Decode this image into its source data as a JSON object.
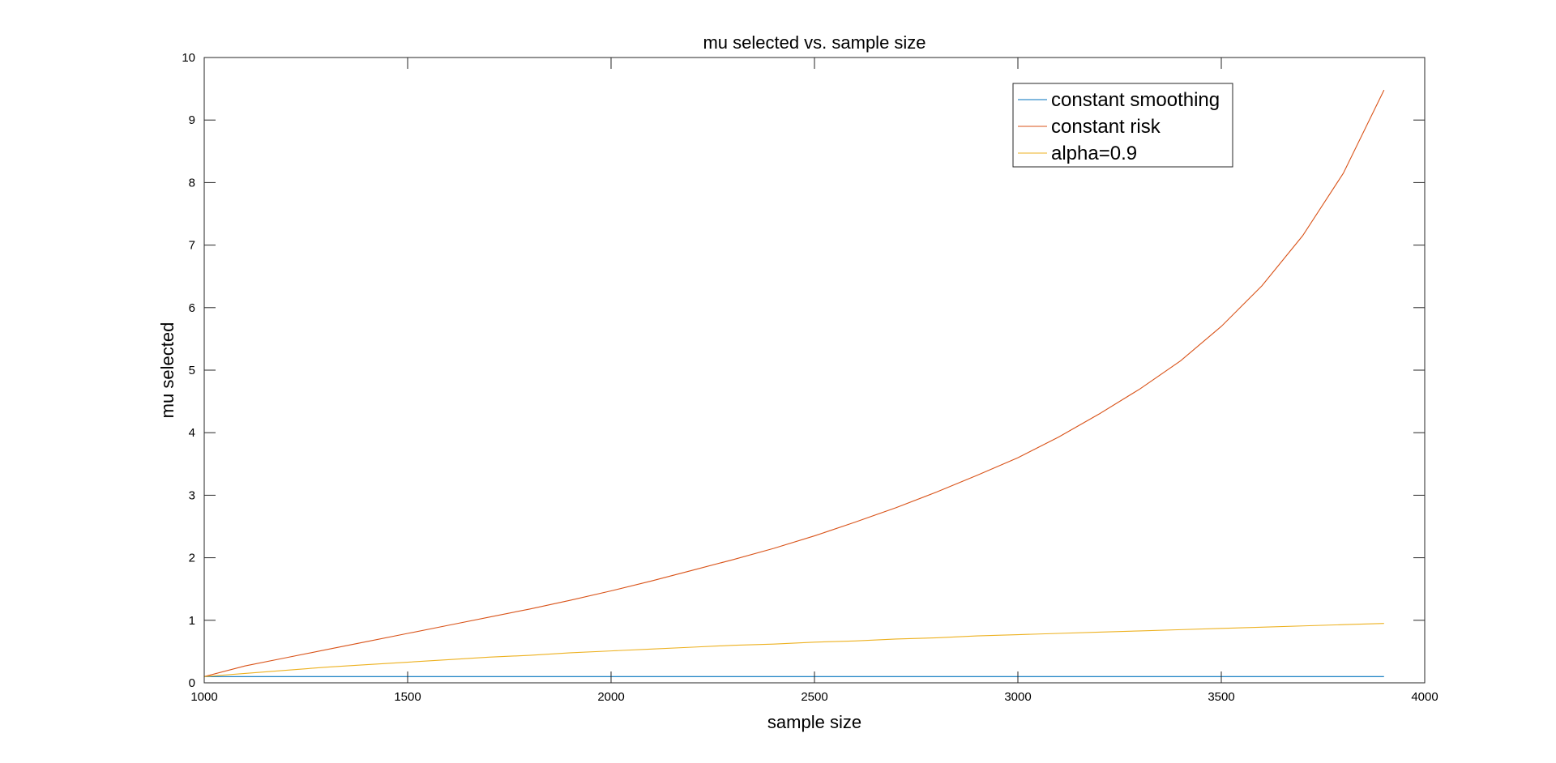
{
  "chart_data": {
    "type": "line",
    "title": "mu selected vs. sample size",
    "xlabel": "sample size",
    "ylabel": "mu selected",
    "xlim": [
      1000,
      4000
    ],
    "ylim": [
      0,
      10
    ],
    "x_ticks": [
      1000,
      1500,
      2000,
      2500,
      3000,
      3500,
      4000
    ],
    "y_ticks": [
      0,
      1,
      2,
      3,
      4,
      5,
      6,
      7,
      8,
      9,
      10
    ],
    "grid": false,
    "legend_position": "top-right",
    "x": [
      1000,
      1100,
      1200,
      1300,
      1400,
      1500,
      1600,
      1700,
      1800,
      1900,
      2000,
      2100,
      2200,
      2300,
      2400,
      2500,
      2600,
      2700,
      2800,
      2900,
      3000,
      3100,
      3200,
      3300,
      3400,
      3500,
      3600,
      3700,
      3800,
      3900
    ],
    "series": [
      {
        "name": "constant smoothing",
        "color": "#0072BD",
        "values": [
          0.1,
          0.1,
          0.1,
          0.1,
          0.1,
          0.1,
          0.1,
          0.1,
          0.1,
          0.1,
          0.1,
          0.1,
          0.1,
          0.1,
          0.1,
          0.1,
          0.1,
          0.1,
          0.1,
          0.1,
          0.1,
          0.1,
          0.1,
          0.1,
          0.1,
          0.1,
          0.1,
          0.1,
          0.1,
          0.1
        ]
      },
      {
        "name": "constant risk",
        "color": "#D95319",
        "values": [
          0.1,
          0.27,
          0.4,
          0.53,
          0.66,
          0.79,
          0.92,
          1.05,
          1.18,
          1.32,
          1.47,
          1.63,
          1.8,
          1.97,
          2.15,
          2.35,
          2.57,
          2.8,
          3.05,
          3.32,
          3.6,
          3.93,
          4.3,
          4.7,
          5.15,
          5.7,
          6.35,
          7.15,
          8.15,
          9.48
        ]
      },
      {
        "name": "alpha=0.9",
        "color": "#EDB120",
        "values": [
          0.1,
          0.15,
          0.2,
          0.25,
          0.29,
          0.33,
          0.37,
          0.41,
          0.44,
          0.48,
          0.51,
          0.54,
          0.57,
          0.6,
          0.62,
          0.65,
          0.67,
          0.7,
          0.72,
          0.75,
          0.77,
          0.79,
          0.81,
          0.83,
          0.85,
          0.87,
          0.89,
          0.91,
          0.93,
          0.95
        ]
      }
    ]
  }
}
